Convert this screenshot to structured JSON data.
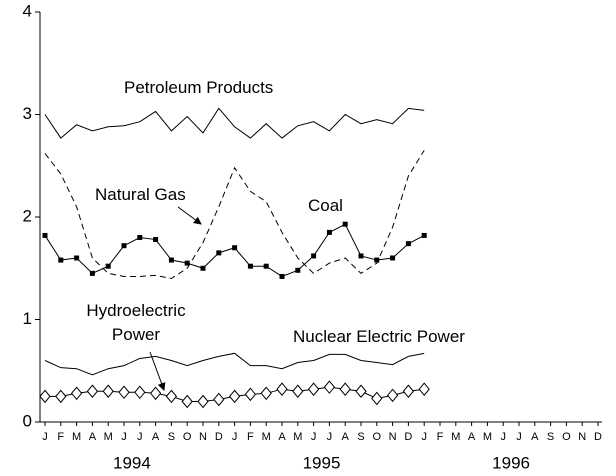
{
  "chart_data": {
    "type": "line",
    "categories": [
      "J",
      "F",
      "M",
      "A",
      "M",
      "J",
      "J",
      "A",
      "S",
      "O",
      "N",
      "D",
      "J",
      "F",
      "M",
      "A",
      "M",
      "J",
      "J",
      "A",
      "S",
      "O",
      "N",
      "D",
      "J",
      "F",
      "M",
      "A",
      "M",
      "J",
      "J",
      "A",
      "S",
      "O",
      "N",
      "D"
    ],
    "year_labels": [
      "1994",
      "1995",
      "1996"
    ],
    "ylim": [
      0,
      4
    ],
    "yticks": [
      0,
      1,
      2,
      3,
      4
    ],
    "grid": false,
    "series": [
      {
        "name": "Petroleum Products",
        "color": "#000000",
        "dashed": false,
        "marker": "none",
        "values": [
          3.0,
          2.77,
          2.9,
          2.84,
          2.88,
          2.89,
          2.93,
          3.03,
          2.84,
          2.98,
          2.82,
          3.06,
          2.88,
          2.77,
          2.91,
          2.77,
          2.89,
          2.93,
          2.84,
          3.0,
          2.91,
          2.95,
          2.91,
          3.06,
          3.04,
          null,
          null,
          null,
          null,
          null,
          null,
          null,
          null,
          null,
          null,
          null
        ]
      },
      {
        "name": "Natural Gas",
        "color": "#000000",
        "dashed": true,
        "marker": "none",
        "values": [
          2.62,
          2.42,
          2.1,
          1.6,
          1.45,
          1.42,
          1.42,
          1.43,
          1.4,
          1.5,
          1.75,
          2.1,
          2.48,
          2.25,
          2.15,
          1.85,
          1.6,
          1.45,
          1.55,
          1.6,
          1.45,
          1.55,
          1.9,
          2.4,
          2.65,
          null,
          null,
          null,
          null,
          null,
          null,
          null,
          null,
          null,
          null,
          null
        ]
      },
      {
        "name": "Coal",
        "color": "#000000",
        "dashed": false,
        "marker": "square",
        "values": [
          1.82,
          1.58,
          1.6,
          1.45,
          1.52,
          1.72,
          1.8,
          1.78,
          1.58,
          1.55,
          1.5,
          1.65,
          1.7,
          1.52,
          1.52,
          1.42,
          1.48,
          1.62,
          1.85,
          1.93,
          1.62,
          1.58,
          1.6,
          1.74,
          1.82,
          null,
          null,
          null,
          null,
          null,
          null,
          null,
          null,
          null,
          null,
          null
        ]
      },
      {
        "name": "Nuclear Electric Power",
        "color": "#000000",
        "dashed": false,
        "marker": "none",
        "values": [
          0.6,
          0.53,
          0.52,
          0.46,
          0.52,
          0.55,
          0.62,
          0.64,
          0.6,
          0.55,
          0.6,
          0.64,
          0.67,
          0.55,
          0.55,
          0.52,
          0.58,
          0.6,
          0.66,
          0.66,
          0.6,
          0.58,
          0.56,
          0.64,
          0.67,
          null,
          null,
          null,
          null,
          null,
          null,
          null,
          null,
          null,
          null,
          null
        ]
      },
      {
        "name": "Hydroelectric Power",
        "color": "#000000",
        "dashed": false,
        "marker": "diamond",
        "values": [
          0.25,
          0.25,
          0.28,
          0.3,
          0.3,
          0.29,
          0.29,
          0.28,
          0.25,
          0.2,
          0.2,
          0.22,
          0.25,
          0.27,
          0.28,
          0.32,
          0.3,
          0.32,
          0.34,
          0.32,
          0.3,
          0.23,
          0.26,
          0.3,
          0.32,
          null,
          null,
          null,
          null,
          null,
          null,
          null,
          null,
          null,
          null,
          null
        ]
      }
    ]
  }
}
